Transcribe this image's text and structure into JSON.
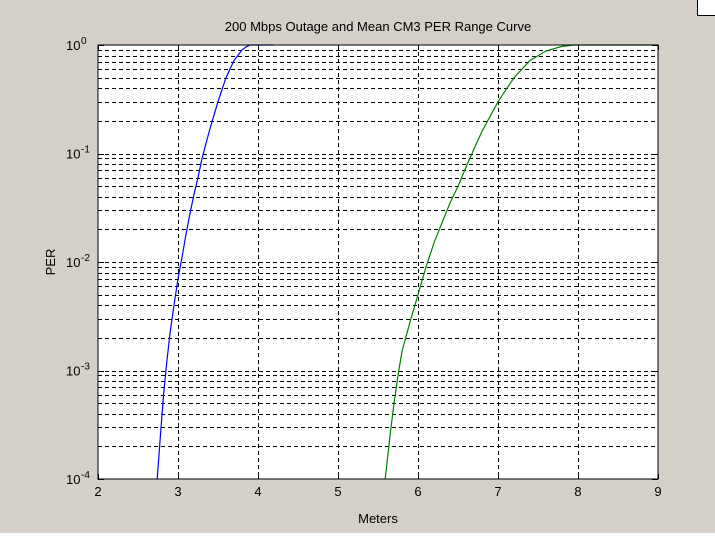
{
  "figure": {
    "background": "#d4d0c8",
    "axes_background": "#ffffff"
  },
  "chart_data": {
    "type": "line",
    "title": "200 Mbps Outage and Mean CM3 PER Range Curve",
    "xlabel": "Meters",
    "ylabel": "PER",
    "xlim": [
      2,
      9
    ],
    "ylim": [
      0.0001,
      1
    ],
    "yscale": "log",
    "grid": "on",
    "x_ticks": [
      "2",
      "3",
      "4",
      "5",
      "6",
      "7",
      "8",
      "9"
    ],
    "y_ticks": [
      {
        "base": "10",
        "exp": "-4"
      },
      {
        "base": "10",
        "exp": "-3"
      },
      {
        "base": "10",
        "exp": "-2"
      },
      {
        "base": "10",
        "exp": "-1"
      },
      {
        "base": "10",
        "exp": "0"
      }
    ],
    "series": [
      {
        "color": "#0000ff",
        "x": [
          2.74,
          2.78,
          2.82,
          2.86,
          2.9,
          2.95,
          3.0,
          3.05,
          3.1,
          3.15,
          3.2,
          3.25,
          3.3,
          3.4,
          3.5,
          3.6,
          3.7,
          3.8,
          3.85,
          3.9,
          4.0,
          4.1,
          4.2
        ],
        "y": [
          0.0001,
          0.00025,
          0.0006,
          0.0012,
          0.0022,
          0.004,
          0.007,
          0.011,
          0.018,
          0.028,
          0.042,
          0.06,
          0.09,
          0.17,
          0.3,
          0.5,
          0.72,
          0.9,
          0.96,
          1.0,
          1.0,
          1.0,
          1.0
        ]
      },
      {
        "color": "#008000",
        "x": [
          5.59,
          5.65,
          5.7,
          5.75,
          5.8,
          5.9,
          6.0,
          6.1,
          6.2,
          6.3,
          6.4,
          6.5,
          6.6,
          6.7,
          6.8,
          7.0,
          7.2,
          7.4,
          7.6,
          7.8,
          7.95,
          8.2,
          8.5,
          9.0
        ],
        "y": [
          0.0001,
          0.00025,
          0.0005,
          0.0009,
          0.0015,
          0.0028,
          0.005,
          0.009,
          0.015,
          0.023,
          0.035,
          0.05,
          0.075,
          0.11,
          0.16,
          0.3,
          0.5,
          0.72,
          0.88,
          0.97,
          1.0,
          1.0,
          1.0,
          1.0
        ]
      }
    ]
  }
}
